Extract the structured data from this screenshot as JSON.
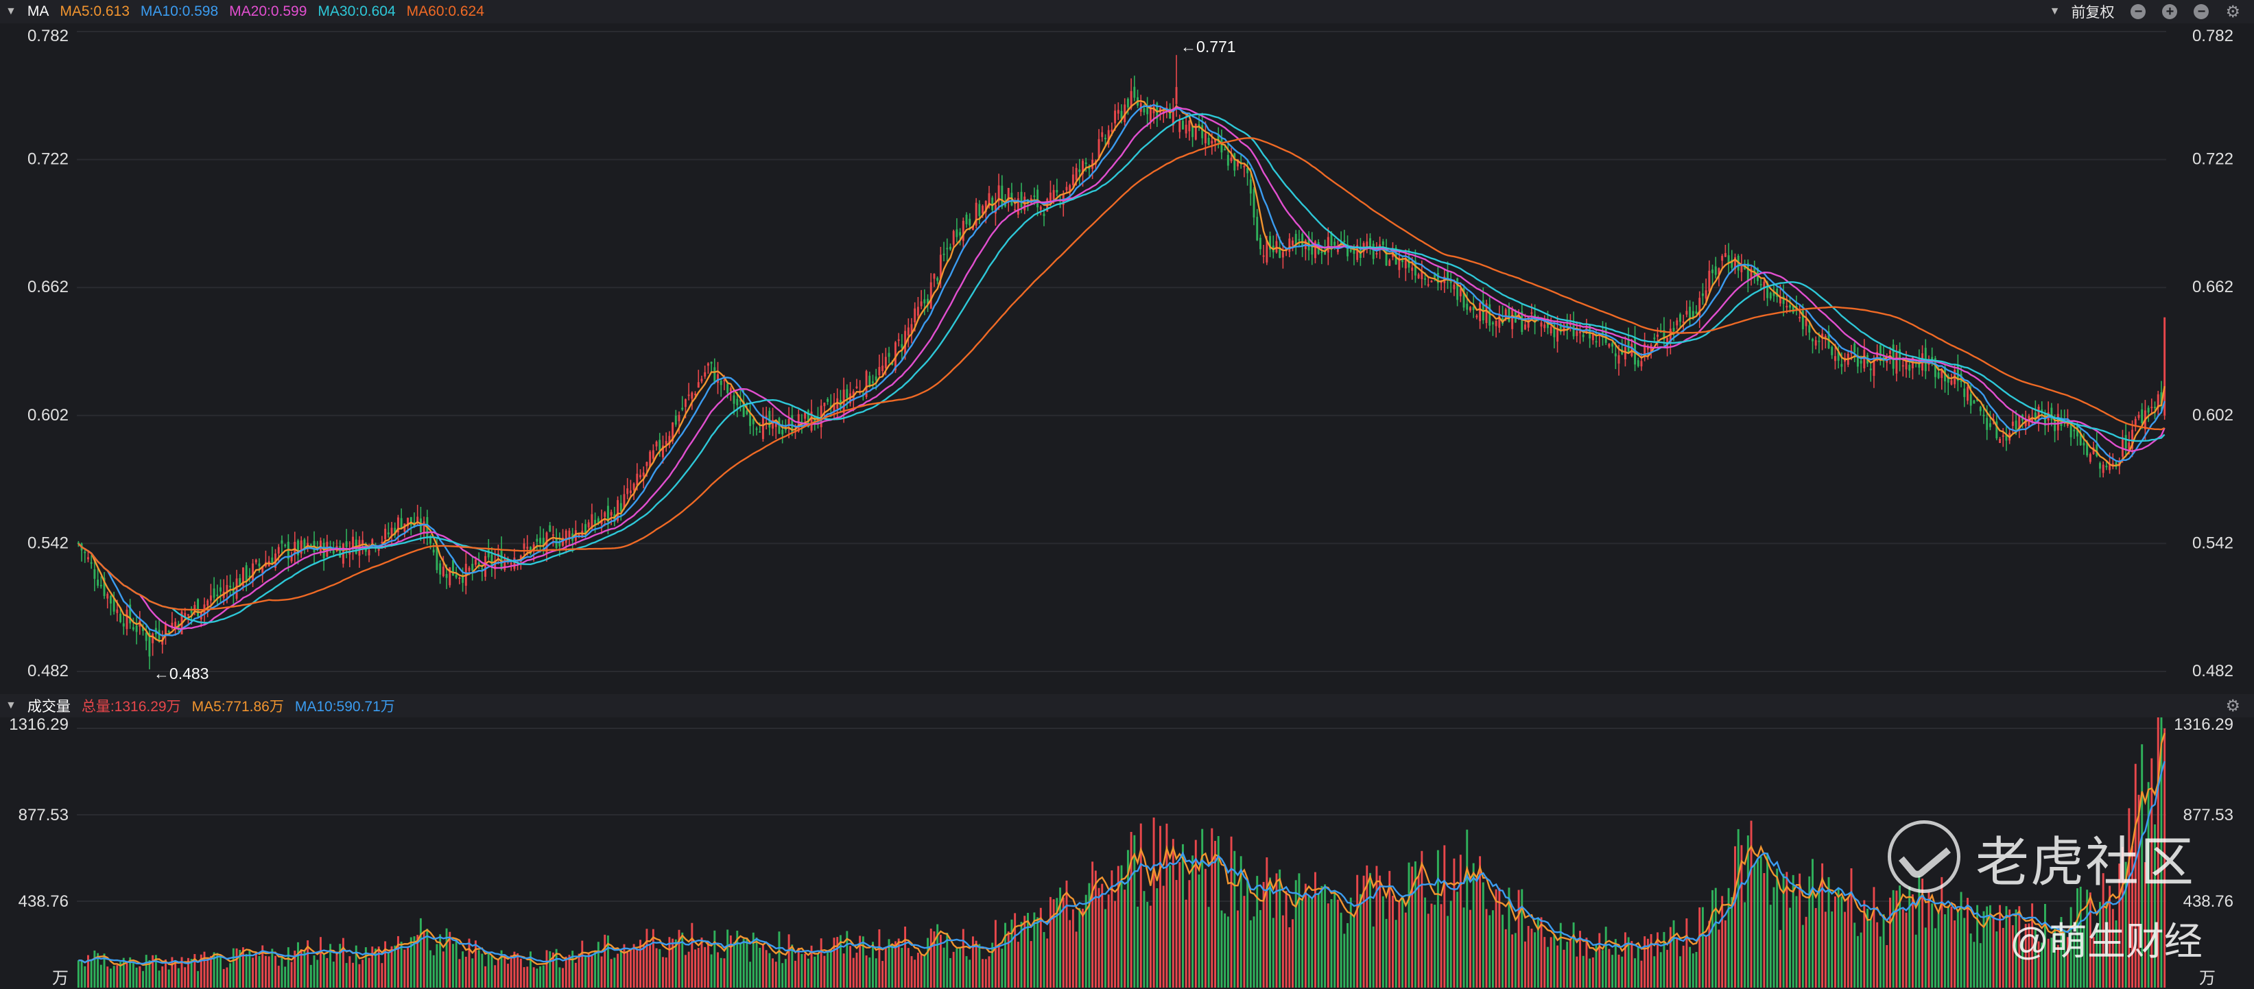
{
  "colors": {
    "bg": "#1b1c20",
    "up": "#e8474b",
    "down": "#2fb15b",
    "ma5": "#f2952f",
    "ma10": "#3b9cf0",
    "ma20": "#e24fd0",
    "ma30": "#2ec8d8",
    "ma60": "#f06a25",
    "grid": "#2a2b30",
    "axis_text": "#e0e0e0"
  },
  "price_panel": {
    "indicator": "MA",
    "ma_labels": [
      "MA5:0.613",
      "MA10:0.598",
      "MA20:0.599",
      "MA30:0.604",
      "MA60:0.624"
    ],
    "adjust_label": "前复权",
    "tool_icons": [
      "minus-circle-icon",
      "plus-circle-icon",
      "minus-circle-icon",
      "gear-icon"
    ],
    "y_ticks": [
      "0.782",
      "0.722",
      "0.662",
      "0.602",
      "0.542",
      "0.482"
    ],
    "annotations": {
      "high": "←0.771",
      "low": "←0.483"
    }
  },
  "volume_panel": {
    "title": "成交量",
    "labels": [
      "总量:1316.29万",
      "MA5:771.86万",
      "MA10:590.71万"
    ],
    "y_ticks": [
      "1316.29",
      "877.53",
      "438.76"
    ],
    "unit": "万"
  },
  "watermark": {
    "brand": "老虎社区",
    "author": "@萌生财经"
  },
  "chart_data": {
    "type": "candlestick",
    "price_range": [
      0.482,
      0.782
    ],
    "volume_range": [
      0,
      1316.29
    ],
    "high": 0.771,
    "low": 0.483,
    "last_volume": 1316.29,
    "close_anchors": [
      [
        0,
        0.542
      ],
      [
        12,
        0.51
      ],
      [
        22,
        0.498
      ],
      [
        35,
        0.51
      ],
      [
        50,
        0.525
      ],
      [
        62,
        0.538
      ],
      [
        80,
        0.54
      ],
      [
        95,
        0.545
      ],
      [
        100,
        0.553
      ],
      [
        108,
        0.548
      ],
      [
        112,
        0.53
      ],
      [
        120,
        0.528
      ],
      [
        135,
        0.537
      ],
      [
        150,
        0.545
      ],
      [
        165,
        0.555
      ],
      [
        172,
        0.568
      ],
      [
        185,
        0.6
      ],
      [
        195,
        0.625
      ],
      [
        205,
        0.605
      ],
      [
        215,
        0.595
      ],
      [
        230,
        0.602
      ],
      [
        250,
        0.625
      ],
      [
        262,
        0.655
      ],
      [
        272,
        0.69
      ],
      [
        285,
        0.705
      ],
      [
        300,
        0.7
      ],
      [
        315,
        0.725
      ],
      [
        325,
        0.75
      ],
      [
        335,
        0.745
      ],
      [
        350,
        0.73
      ],
      [
        362,
        0.715
      ],
      [
        366,
        0.68
      ],
      [
        375,
        0.68
      ],
      [
        392,
        0.682
      ],
      [
        410,
        0.675
      ],
      [
        422,
        0.665
      ],
      [
        438,
        0.648
      ],
      [
        452,
        0.645
      ],
      [
        470,
        0.638
      ],
      [
        483,
        0.63
      ],
      [
        500,
        0.652
      ],
      [
        510,
        0.678
      ],
      [
        522,
        0.662
      ],
      [
        535,
        0.645
      ],
      [
        545,
        0.628
      ],
      [
        560,
        0.628
      ],
      [
        572,
        0.627
      ],
      [
        582,
        0.618
      ],
      [
        595,
        0.592
      ],
      [
        605,
        0.605
      ],
      [
        618,
        0.595
      ],
      [
        628,
        0.575
      ],
      [
        638,
        0.6
      ],
      [
        646,
        0.613
      ]
    ],
    "volume_anchors": [
      [
        0,
        140
      ],
      [
        30,
        120
      ],
      [
        60,
        160
      ],
      [
        80,
        210
      ],
      [
        90,
        160
      ],
      [
        105,
        260
      ],
      [
        120,
        190
      ],
      [
        140,
        140
      ],
      [
        170,
        210
      ],
      [
        190,
        260
      ],
      [
        205,
        210
      ],
      [
        230,
        200
      ],
      [
        260,
        230
      ],
      [
        280,
        230
      ],
      [
        300,
        330
      ],
      [
        320,
        530
      ],
      [
        335,
        700
      ],
      [
        350,
        660
      ],
      [
        365,
        500
      ],
      [
        385,
        430
      ],
      [
        405,
        460
      ],
      [
        420,
        570
      ],
      [
        432,
        580
      ],
      [
        440,
        420
      ],
      [
        460,
        250
      ],
      [
        480,
        210
      ],
      [
        500,
        260
      ],
      [
        515,
        660
      ],
      [
        530,
        440
      ],
      [
        545,
        500
      ],
      [
        560,
        340
      ],
      [
        575,
        460
      ],
      [
        595,
        300
      ],
      [
        615,
        330
      ],
      [
        630,
        460
      ],
      [
        646,
        1316.29
      ]
    ]
  }
}
